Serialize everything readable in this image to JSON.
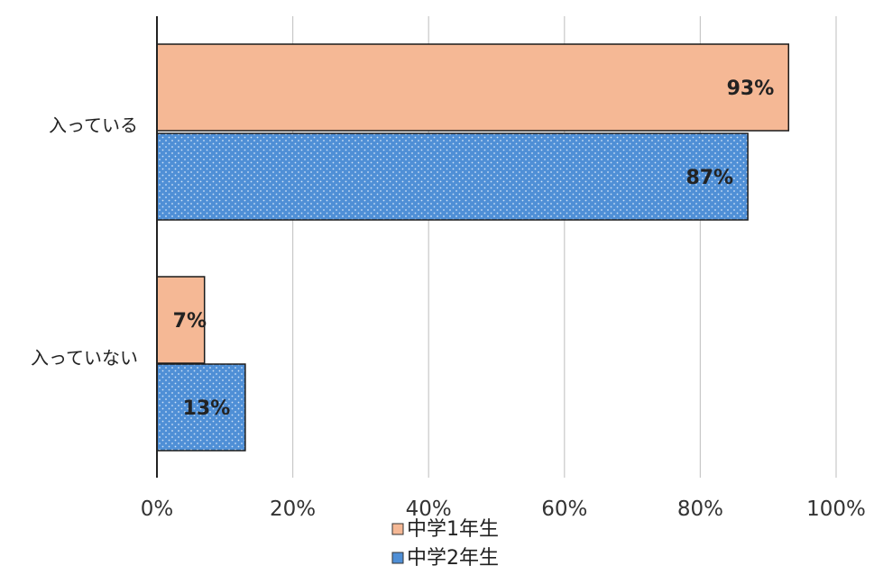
{
  "chart_data": {
    "type": "bar",
    "orientation": "horizontal",
    "categories": [
      "入っている",
      "入っていない"
    ],
    "series": [
      {
        "name": "中学1年生",
        "values": [
          93,
          7
        ],
        "labels": [
          "93%",
          "7%"
        ]
      },
      {
        "name": "中学2年生",
        "values": [
          87,
          13
        ],
        "labels": [
          "87%",
          "13%"
        ]
      }
    ],
    "xlim": [
      0,
      100
    ],
    "xticks": [
      0,
      20,
      40,
      60,
      80,
      100
    ],
    "xtick_labels": [
      "0%",
      "20%",
      "40%",
      "60%",
      "80%",
      "100%"
    ],
    "grid": true,
    "legend_position": "bottom",
    "colors": {
      "series_1": "#f5b895",
      "series_2": "#4f8fd6",
      "gridline": "#c8c8c8",
      "axis": "#222222"
    }
  }
}
